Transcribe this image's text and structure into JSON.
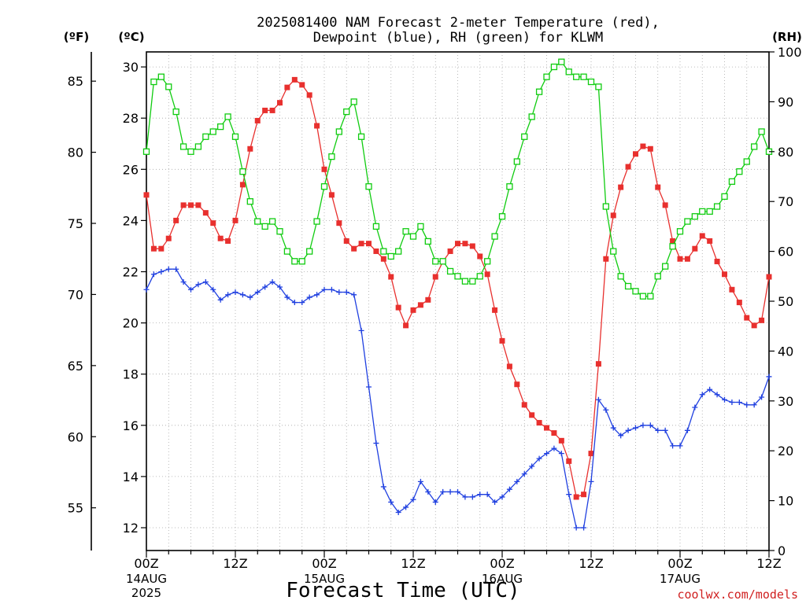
{
  "chart_data": {
    "type": "line",
    "title_line1": "2025081400 NAM Forecast 2-meter Temperature (red),",
    "title_line2": "Dewpoint (blue), RH (green) for KLWM",
    "xlabel": "Forecast Time (UTC)",
    "credit": "coolwx.com/models",
    "units": {
      "f": "(ºF)",
      "c": "(ºC)",
      "rh": "(RH)"
    },
    "x_range_hours": [
      0,
      84
    ],
    "ylim_c": [
      11,
      30.5
    ],
    "ylim_rh": [
      0,
      100
    ],
    "y_ticks_c": [
      "12",
      "14",
      "16",
      "18",
      "20",
      "22",
      "24",
      "26",
      "28",
      "30"
    ],
    "y_ticks_f": [
      "55",
      "60",
      "65",
      "70",
      "75",
      "80",
      "85"
    ],
    "y_ticks_rh": [
      "0",
      "10",
      "20",
      "30",
      "40",
      "50",
      "60",
      "70",
      "80",
      "90",
      "100"
    ],
    "x_ticks": [
      {
        "hour": 0,
        "label": "00Z",
        "date": "14AUG",
        "year": "2025"
      },
      {
        "hour": 12,
        "label": "12Z",
        "date": "",
        "year": ""
      },
      {
        "hour": 24,
        "label": "00Z",
        "date": "15AUG",
        "year": ""
      },
      {
        "hour": 36,
        "label": "12Z",
        "date": "",
        "year": ""
      },
      {
        "hour": 48,
        "label": "00Z",
        "date": "16AUG",
        "year": ""
      },
      {
        "hour": 60,
        "label": "12Z",
        "date": "",
        "year": ""
      },
      {
        "hour": 72,
        "label": "00Z",
        "date": "17AUG",
        "year": ""
      },
      {
        "hour": 84,
        "label": "12Z",
        "date": "",
        "year": ""
      }
    ],
    "grid": true,
    "colors": {
      "temperature": "#e8302e",
      "dewpoint": "#2040e0",
      "rh": "#10cc10"
    },
    "series": [
      {
        "key": "temperature",
        "axis": "c",
        "values": [
          25.0,
          22.9,
          22.9,
          23.3,
          24.0,
          24.6,
          24.6,
          24.6,
          24.3,
          23.9,
          23.3,
          23.2,
          24.0,
          25.4,
          26.8,
          27.9,
          28.3,
          28.3,
          28.6,
          29.2,
          29.5,
          29.3,
          28.9,
          27.7,
          26.0,
          25.0,
          23.9,
          23.2,
          22.9,
          23.1,
          23.1,
          22.8,
          22.5,
          21.8,
          20.6,
          19.9,
          20.5,
          20.7,
          20.9,
          21.8,
          22.4,
          22.8,
          23.1,
          23.1,
          23.0,
          22.6,
          21.9,
          20.5,
          19.3,
          18.3,
          17.6,
          16.8,
          16.4,
          16.1,
          15.9,
          15.7,
          15.4,
          14.6,
          13.2,
          13.3,
          14.9,
          18.4,
          22.5,
          24.2,
          25.3,
          26.1,
          26.6,
          26.9,
          26.8,
          25.3,
          24.6,
          23.2,
          22.5,
          22.5,
          22.9,
          23.4,
          23.2,
          22.4,
          21.9,
          21.3,
          20.8,
          20.2,
          19.9,
          20.1,
          21.8
        ]
      },
      {
        "key": "dewpoint",
        "axis": "c",
        "values": [
          21.3,
          21.9,
          22.0,
          22.1,
          22.1,
          21.6,
          21.3,
          21.5,
          21.6,
          21.3,
          20.9,
          21.1,
          21.2,
          21.1,
          21.0,
          21.2,
          21.4,
          21.6,
          21.4,
          21.0,
          20.8,
          20.8,
          21.0,
          21.1,
          21.3,
          21.3,
          21.2,
          21.2,
          21.1,
          19.7,
          17.5,
          15.3,
          13.6,
          13.0,
          12.6,
          12.8,
          13.1,
          13.8,
          13.4,
          13.0,
          13.4,
          13.4,
          13.4,
          13.2,
          13.2,
          13.3,
          13.3,
          13.0,
          13.2,
          13.5,
          13.8,
          14.1,
          14.4,
          14.7,
          14.9,
          15.1,
          14.9,
          13.3,
          12.0,
          12.0,
          13.8,
          17.0,
          16.6,
          15.9,
          15.6,
          15.8,
          15.9,
          16.0,
          16.0,
          15.8,
          15.8,
          15.2,
          15.2,
          15.8,
          16.7,
          17.2,
          17.4,
          17.2,
          17.0,
          16.9,
          16.9,
          16.8,
          16.8,
          17.1,
          17.9
        ]
      },
      {
        "key": "rh",
        "axis": "rh",
        "values": [
          80,
          94,
          95,
          93,
          88,
          81,
          80,
          81,
          83,
          84,
          85,
          87,
          83,
          76,
          70,
          66,
          65,
          66,
          64,
          60,
          58,
          58,
          60,
          66,
          73,
          79,
          84,
          88,
          90,
          83,
          73,
          65,
          60,
          59,
          60,
          64,
          63,
          65,
          62,
          58,
          58,
          56,
          55,
          54,
          54,
          55,
          58,
          63,
          67,
          73,
          78,
          83,
          87,
          92,
          95,
          97,
          98,
          96,
          95,
          95,
          94,
          93,
          69,
          60,
          55,
          53,
          52,
          51,
          51,
          55,
          57,
          61,
          64,
          66,
          67,
          68,
          68,
          69,
          71,
          74,
          76,
          78,
          81,
          84,
          80
        ]
      }
    ]
  }
}
